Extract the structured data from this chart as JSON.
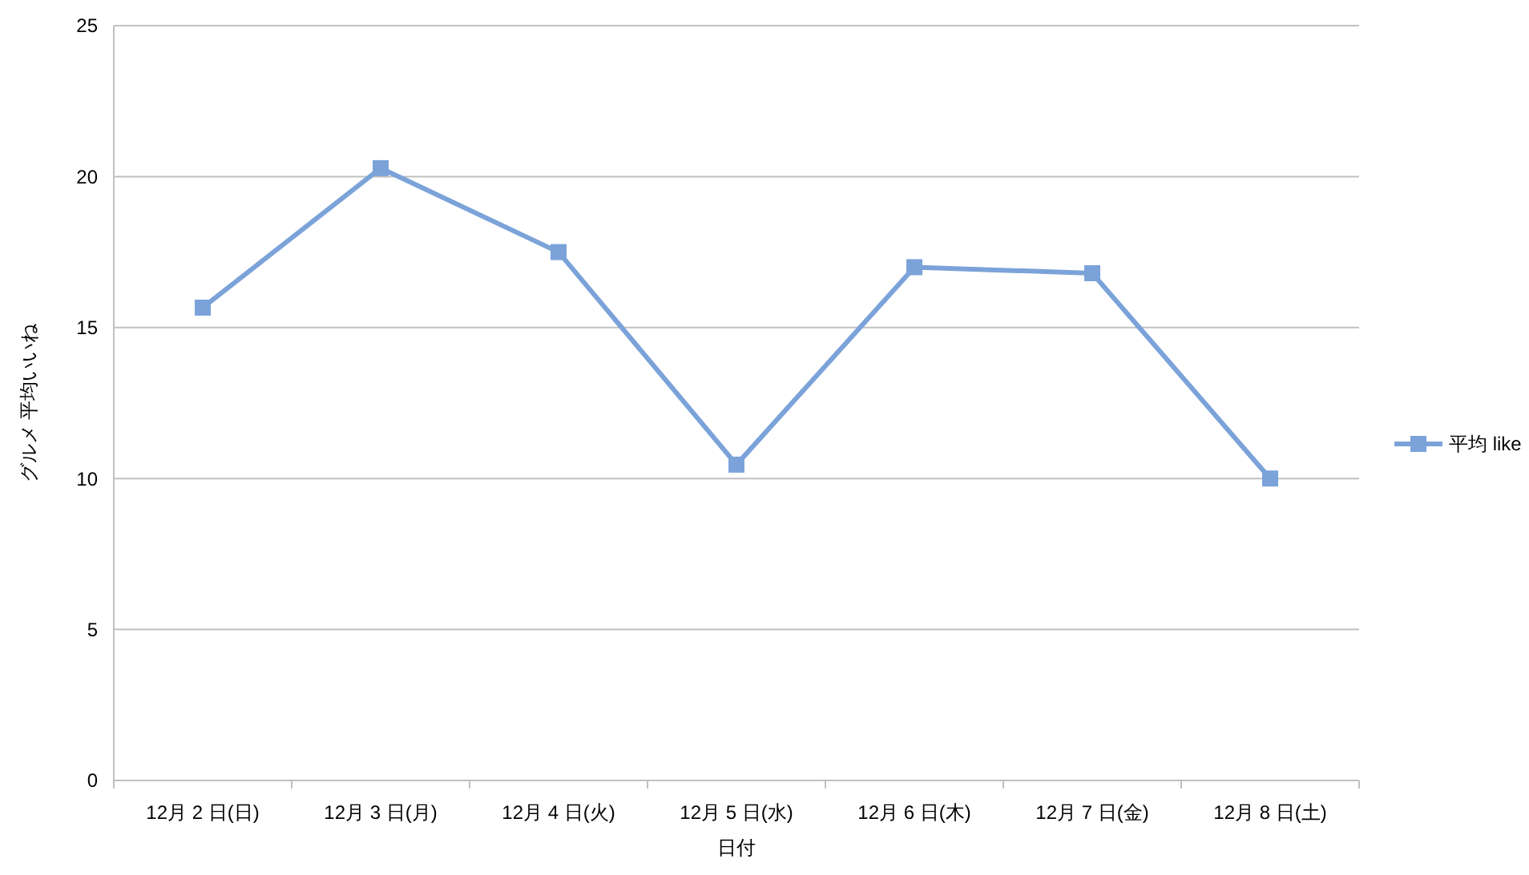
{
  "chart_data": {
    "type": "line",
    "xlabel": "日付",
    "ylabel": "グルメ 平均いいね",
    "categories": [
      "12月 2 日(日)",
      "12月 3 日(月)",
      "12月 4 日(火)",
      "12月 5 日(水)",
      "12月 6 日(木)",
      "12月 7 日(金)",
      "12月 8 日(土)"
    ],
    "series": [
      {
        "name": "平均 like",
        "color": "#7ba3d9",
        "values": [
          15.66,
          20.28,
          17.5,
          10.46,
          17.0,
          16.8,
          10.0
        ]
      }
    ],
    "ylim": [
      0,
      25
    ],
    "yticks": [
      0,
      5,
      10,
      15,
      20,
      25
    ],
    "grid": "y",
    "legend": "right",
    "marker": "square",
    "line_style": "solid"
  }
}
